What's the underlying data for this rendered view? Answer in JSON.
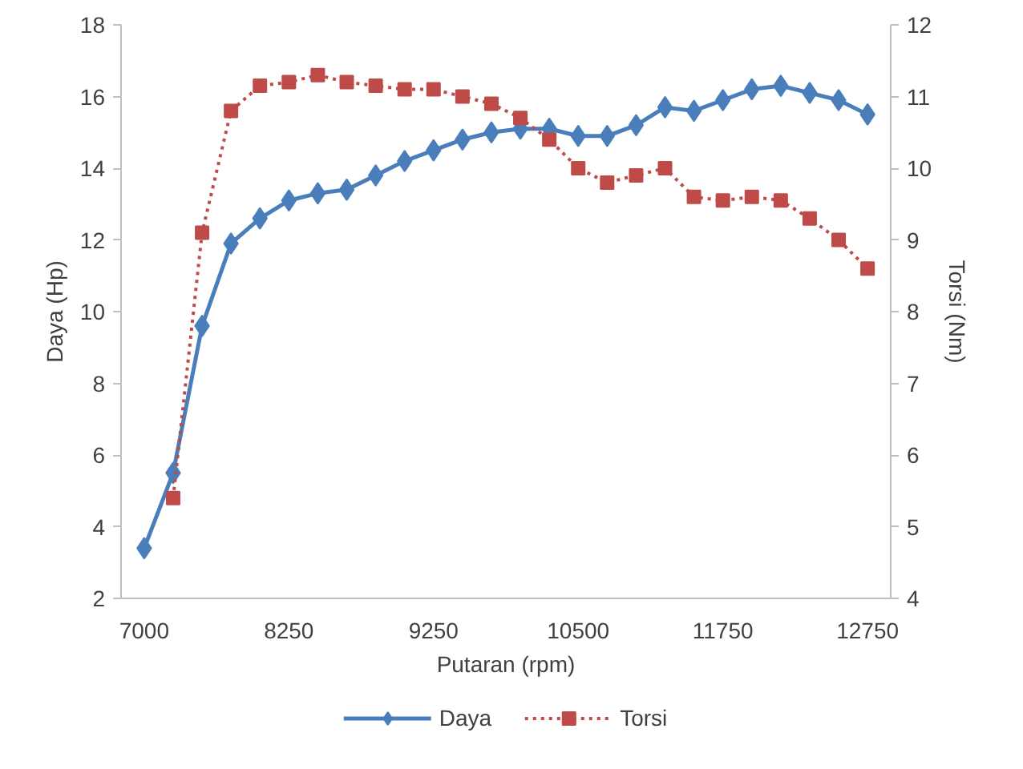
{
  "chart_data": {
    "type": "line",
    "xlabel": "Putaran (rpm)",
    "ylabel": "Daya (Hp)",
    "y2label": "Torsi (Nm)",
    "categories": [
      "7000",
      null,
      null,
      null,
      null,
      "8250",
      null,
      null,
      null,
      null,
      "9250",
      null,
      null,
      null,
      null,
      "10500",
      null,
      null,
      null,
      null,
      "11750",
      null,
      null,
      null,
      null,
      "12750"
    ],
    "series": [
      {
        "name": "Daya",
        "color": "#4a7ebb",
        "marker": "diamond",
        "line_style": "solid",
        "values": [
          3.4,
          5.5,
          9.6,
          11.9,
          12.6,
          13.1,
          13.3,
          13.4,
          13.8,
          14.2,
          14.5,
          14.8,
          15.0,
          15.1,
          15.1,
          14.9,
          14.9,
          15.2,
          15.7,
          15.6,
          15.9,
          16.2,
          16.3,
          16.1,
          15.9,
          15.5
        ]
      },
      {
        "name": "Torsi",
        "color": "#be4b48",
        "marker": "square",
        "line_style": "dotted",
        "axis": "y2",
        "values": [
          null,
          5.4,
          9.1,
          10.8,
          11.15,
          11.2,
          11.3,
          11.2,
          11.15,
          11.1,
          11.1,
          11.0,
          10.9,
          10.7,
          10.4,
          10.0,
          9.8,
          9.9,
          10.0,
          9.6,
          9.55,
          9.6,
          9.55,
          9.3,
          9.0,
          8.6
        ]
      }
    ],
    "ylim": [
      2,
      18
    ],
    "yticks": [
      2,
      4,
      6,
      8,
      10,
      12,
      14,
      16,
      18
    ],
    "y2lim": [
      4,
      12
    ],
    "y2ticks": [
      4,
      5,
      6,
      7,
      8,
      9,
      10,
      11,
      12
    ],
    "grid": false,
    "legend": "bottom"
  }
}
